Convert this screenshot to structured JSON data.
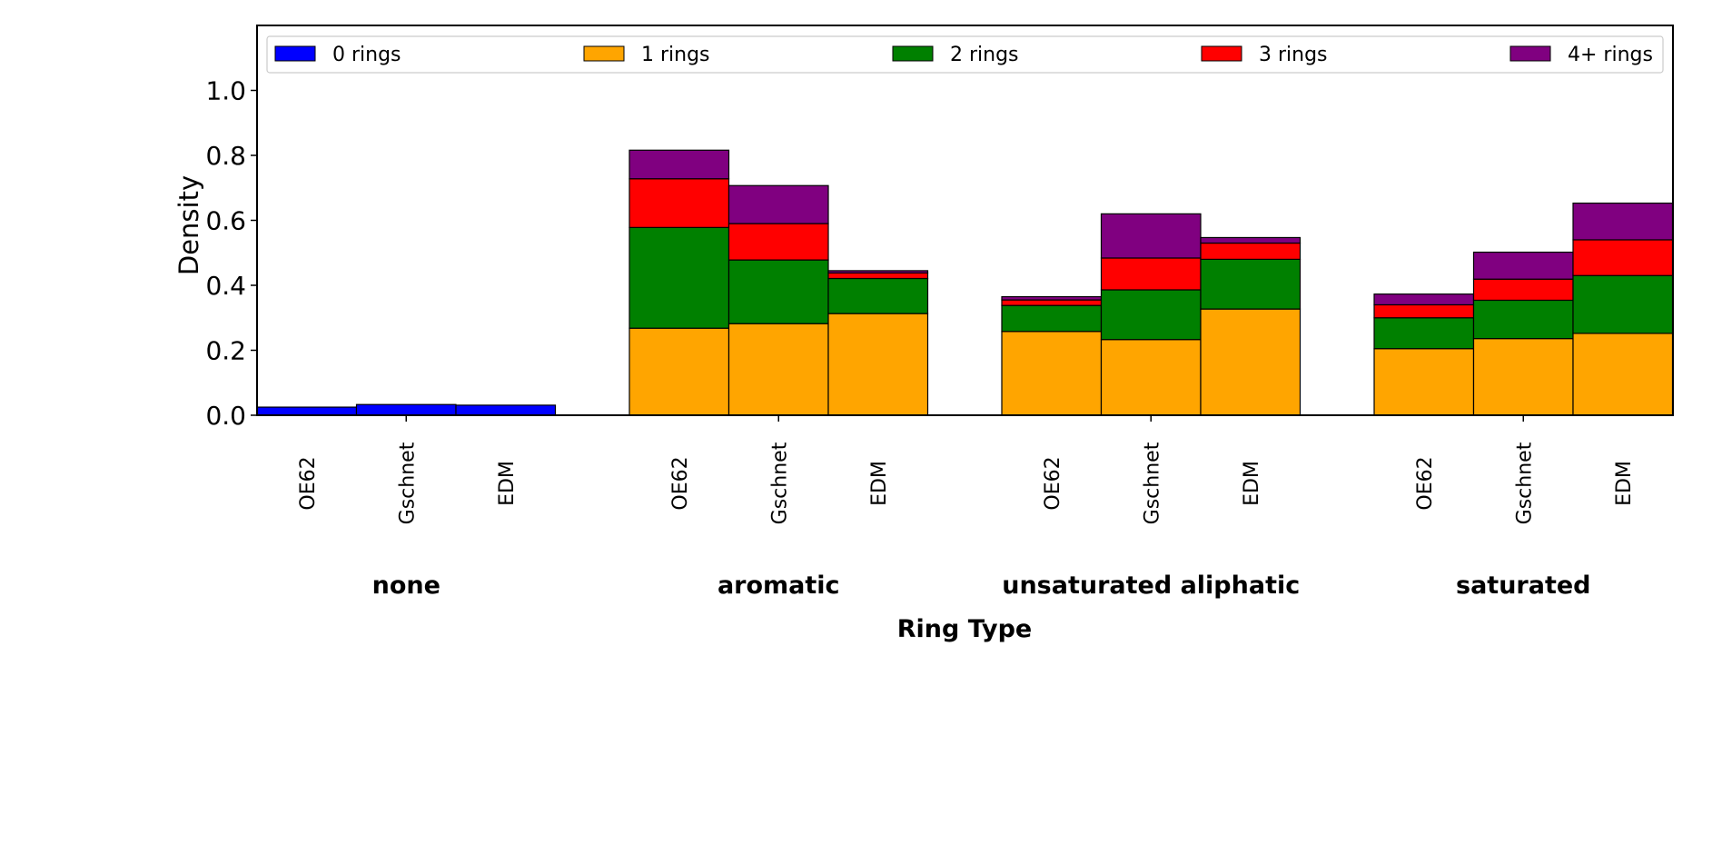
{
  "chart_data": {
    "type": "bar",
    "stacked": true,
    "title": "",
    "xlabel": "Ring Type",
    "ylabel": "Density",
    "ylim": [
      0,
      1.2
    ],
    "yticks": [
      "0.0",
      "0.2",
      "0.4",
      "0.6",
      "0.8",
      "1.0"
    ],
    "grid": false,
    "legend_position": "top",
    "groups": [
      {
        "label": "none",
        "categories": [
          "OE62",
          "Gschnet",
          "EDM"
        ]
      },
      {
        "label": "aromatic",
        "categories": [
          "OE62",
          "Gschnet",
          "EDM"
        ]
      },
      {
        "label": "unsaturated aliphatic",
        "categories": [
          "OE62",
          "Gschnet",
          "EDM"
        ]
      },
      {
        "label": "saturated",
        "categories": [
          "OE62",
          "Gschnet",
          "EDM"
        ]
      }
    ],
    "series": [
      {
        "name": "0 rings",
        "color": "#0000ff",
        "values": [
          0.025,
          0.033,
          0.031,
          0,
          0,
          0,
          0,
          0,
          0,
          0,
          0,
          0
        ]
      },
      {
        "name": "1 rings",
        "color": "#ffa500",
        "values": [
          0,
          0,
          0,
          0.268,
          0.282,
          0.313,
          0.258,
          0.233,
          0.327,
          0.205,
          0.236,
          0.252
        ]
      },
      {
        "name": "2 rings",
        "color": "#008000",
        "values": [
          0,
          0,
          0,
          0.31,
          0.196,
          0.108,
          0.08,
          0.153,
          0.153,
          0.095,
          0.118,
          0.178
        ]
      },
      {
        "name": "3 rings",
        "color": "#ff0000",
        "values": [
          0,
          0,
          0,
          0.15,
          0.112,
          0.017,
          0.017,
          0.098,
          0.05,
          0.04,
          0.065,
          0.11
        ]
      },
      {
        "name": "4+ rings",
        "color": "#800080",
        "values": [
          0,
          0,
          0,
          0.088,
          0.117,
          0.007,
          0.01,
          0.136,
          0.017,
          0.033,
          0.083,
          0.113
        ]
      }
    ]
  }
}
